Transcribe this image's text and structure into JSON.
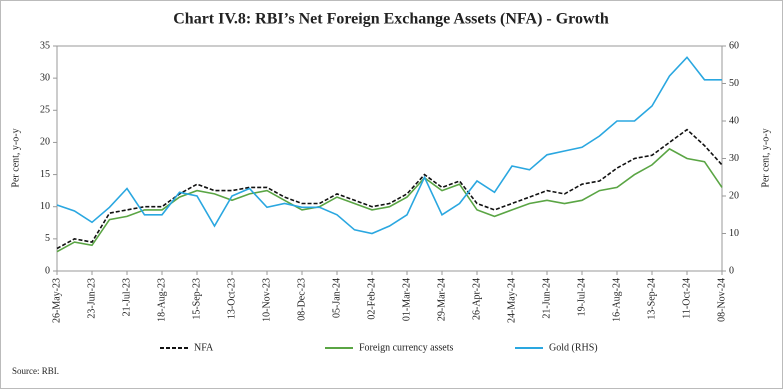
{
  "chart_data": {
    "type": "line",
    "title": "Chart IV.8: RBI’s Net Foreign Exchange Assets (NFA) - Growth",
    "y_label": "Per cent, y-o-y",
    "y2_label": "Per cent, y-o-y",
    "source": "Source: RBI.",
    "categories": [
      "26-May-23",
      null,
      "23-Jun-23",
      null,
      "21-Jul-23",
      null,
      "18-Aug-23",
      null,
      "15-Sep-23",
      null,
      "13-Oct-23",
      null,
      "10-Nov-23",
      null,
      "08-Dec-23",
      null,
      "05-Jan-24",
      null,
      "02-Feb-24",
      null,
      "01-Mar-24",
      null,
      "29-Mar-24",
      null,
      "26-Apr-24",
      null,
      "24-May-24",
      null,
      "21-Jun-24",
      null,
      "19-Jul-24",
      null,
      "16-Aug-24",
      null,
      "13-Sep-24",
      null,
      "11-Oct-24",
      null,
      "08-Nov-24"
    ],
    "ylim": [
      0,
      35
    ],
    "yticks": [
      0,
      5,
      10,
      15,
      20,
      25,
      30,
      35
    ],
    "y2lim": [
      0,
      60
    ],
    "y2ticks": [
      0,
      10,
      20,
      30,
      40,
      50,
      60
    ],
    "legend": "bottom",
    "series": [
      {
        "name": "NFA",
        "color": "#111111",
        "dash": true,
        "values": [
          3.5,
          5,
          4.5,
          9,
          9.5,
          10,
          10,
          12,
          13.5,
          12.5,
          12.5,
          13,
          13,
          11.5,
          10.5,
          10.5,
          12,
          11,
          10,
          10.5,
          12,
          15,
          13,
          14,
          10.5,
          9.5,
          10.5,
          11.5,
          12.5,
          12,
          13.5,
          14,
          16,
          17.5,
          18,
          20,
          22,
          19.5,
          16.5
        ]
      },
      {
        "name": "Foreign currency assets",
        "color": "#5aa544",
        "dash": false,
        "values": [
          3,
          4.5,
          4,
          8,
          8.5,
          9.5,
          9.5,
          11.5,
          12.5,
          12,
          11,
          12,
          12.5,
          11,
          9.5,
          10,
          11.5,
          10.5,
          9.5,
          10,
          11.5,
          14.5,
          12.5,
          13.5,
          9.5,
          8.5,
          9.5,
          10.5,
          11,
          10.5,
          11,
          12.5,
          13,
          15,
          16.5,
          19,
          17.5,
          17,
          13
        ]
      },
      {
        "name": "Gold (RHS)",
        "color": "#2aa7e0",
        "dash": false,
        "axis": "y2",
        "values": [
          17.6,
          16,
          13,
          17,
          22,
          15,
          15,
          21,
          20,
          12,
          20,
          22,
          17,
          18,
          17,
          17,
          15,
          11,
          10,
          12,
          15,
          25,
          15,
          18,
          24,
          21,
          28,
          27,
          31,
          32,
          33,
          36,
          40,
          40,
          44,
          52,
          57,
          51,
          51
        ]
      }
    ]
  }
}
